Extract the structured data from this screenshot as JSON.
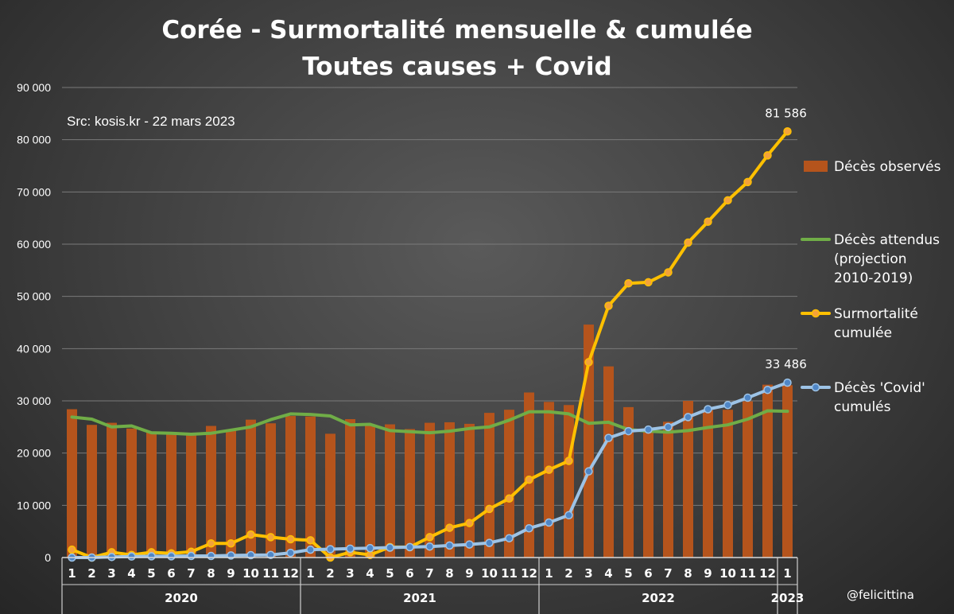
{
  "chart_data": {
    "type": "bar",
    "title": "Corée - Surmortalité mensuelle & cumulée",
    "subtitle": "Toutes causes + Covid",
    "source": "Src: kosis.kr - 22 mars 2023",
    "credit": "@felicittina",
    "ylim": [
      0,
      90000
    ],
    "yticks": [
      0,
      10000,
      20000,
      30000,
      40000,
      50000,
      60000,
      70000,
      80000,
      90000
    ],
    "ytick_labels": [
      "0",
      "10 000",
      "20 000",
      "30 000",
      "40 000",
      "50 000",
      "60 000",
      "70 000",
      "80 000",
      "90 000"
    ],
    "grid": true,
    "legend_position": "right",
    "categories": [
      "1",
      "2",
      "3",
      "4",
      "5",
      "6",
      "7",
      "8",
      "9",
      "10",
      "11",
      "12",
      "1",
      "2",
      "3",
      "4",
      "5",
      "6",
      "7",
      "8",
      "9",
      "10",
      "11",
      "12",
      "1",
      "2",
      "3",
      "4",
      "5",
      "6",
      "7",
      "8",
      "9",
      "10",
      "11",
      "12",
      "1"
    ],
    "years": [
      {
        "label": "2020",
        "start": 0,
        "end": 11
      },
      {
        "label": "2021",
        "start": 12,
        "end": 23
      },
      {
        "label": "2022",
        "start": 24,
        "end": 35
      },
      {
        "label": "2023",
        "start": 36,
        "end": 36
      }
    ],
    "series": [
      {
        "name": "Décès observés",
        "kind": "bar",
        "color": "#b5541c",
        "values": [
          28400,
          25400,
          25800,
          24700,
          24000,
          23600,
          23700,
          25200,
          24400,
          26400,
          25700,
          27100,
          27000,
          23700,
          26500,
          25500,
          25500,
          24600,
          25800,
          25900,
          25600,
          27700,
          28300,
          31600,
          29800,
          29200,
          44600,
          36600,
          28800,
          24400,
          26000,
          30000,
          28200,
          28300,
          29900,
          33100,
          33000
        ]
      },
      {
        "name": "Décès attendus (projection 2010-2019)",
        "legend_lines": [
          "Décès attendus",
          "(projection",
          "2010-2019)"
        ],
        "kind": "line",
        "color": "#70ad47",
        "values": [
          26900,
          26500,
          25000,
          25200,
          23900,
          23800,
          23600,
          23800,
          24400,
          25000,
          26400,
          27500,
          27400,
          27100,
          25400,
          25500,
          24300,
          24100,
          23900,
          24200,
          24700,
          25000,
          26300,
          27900,
          27900,
          27500,
          25700,
          25900,
          24500,
          24200,
          24000,
          24300,
          24900,
          25400,
          26500,
          28100,
          28000
        ]
      },
      {
        "name": "Surmortalité cumulée",
        "legend_lines": [
          "Surmortalité",
          "cumulée"
        ],
        "kind": "line",
        "color": "#ffc000",
        "values": [
          1500,
          0,
          1000,
          500,
          1000,
          800,
          1100,
          2700,
          2700,
          4400,
          3900,
          3500,
          3300,
          0,
          1000,
          500,
          2000,
          2000,
          3900,
          5700,
          6600,
          9300,
          11300,
          14900,
          16800,
          18500,
          37400,
          48200,
          52500,
          52700,
          54600,
          60300,
          64300,
          68400,
          71900,
          77000,
          81586
        ]
      },
      {
        "name": "Décès 'Covid' cumulés",
        "legend_lines": [
          "Décès 'Covid'",
          "cumulés"
        ],
        "kind": "line",
        "color": "#9dc3e6",
        "values": [
          0,
          0,
          100,
          200,
          250,
          250,
          300,
          300,
          400,
          450,
          500,
          900,
          1500,
          1600,
          1700,
          1800,
          1900,
          2000,
          2100,
          2300,
          2500,
          2800,
          3700,
          5600,
          6700,
          8100,
          16500,
          22900,
          24200,
          24500,
          25000,
          26900,
          28400,
          29200,
          30600,
          32100,
          33486
        ]
      }
    ],
    "data_labels": [
      {
        "series": "Surmortalité cumulée",
        "index": 36,
        "text": "81 586"
      },
      {
        "series": "Décès 'Covid' cumulés",
        "index": 36,
        "text": "33 486"
      }
    ]
  }
}
